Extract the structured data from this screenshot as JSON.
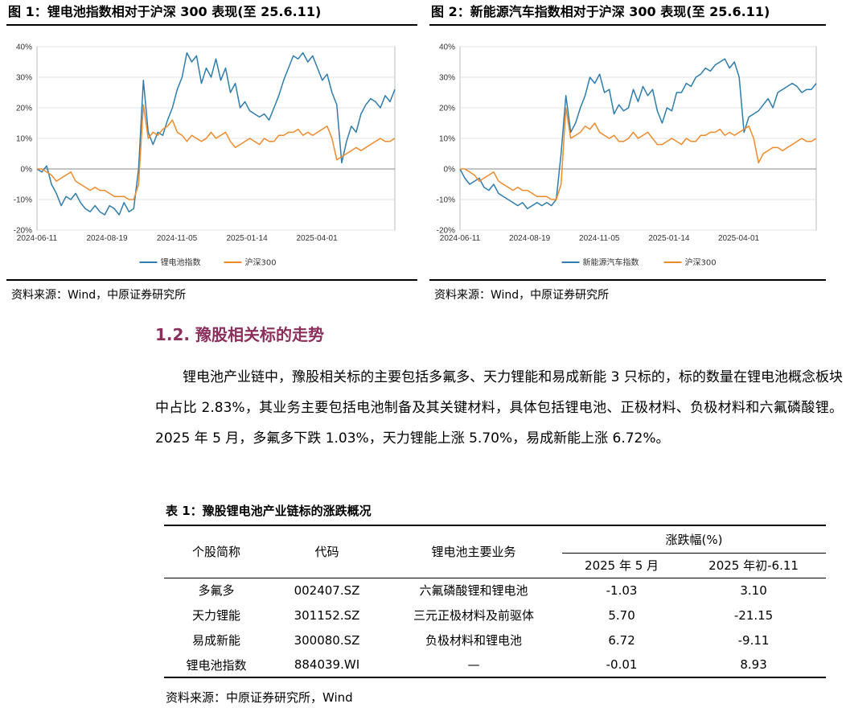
{
  "figure1": {
    "title": "图 1：锂电池指数相对于沪深 300 表现(至 25.6.11)",
    "source": "资料来源：Wind，中原证券研究所",
    "chart_data": {
      "type": "line",
      "x_ticks": [
        "2024-06-11",
        "2024-08-19",
        "2024-11-05",
        "2025-01-14",
        "2025-04-01"
      ],
      "y_ticks": [
        "40%",
        "30%",
        "20%",
        "10%",
        "0%",
        "-10%",
        "-20%"
      ],
      "ylim": [
        -20,
        40
      ],
      "grid": "horizontal",
      "legend_position": "bottom",
      "colors": {
        "primary": "#2e7dac",
        "secondary": "#ef8a2b"
      },
      "series": [
        {
          "name": "锂电池指数",
          "values": [
            0,
            -1,
            1,
            -5,
            -8,
            -12,
            -9,
            -10,
            -8,
            -11,
            -13,
            -14,
            -12,
            -14,
            -15,
            -12,
            -13,
            -15,
            -11,
            -14,
            -13,
            0,
            29,
            12,
            8,
            12,
            11,
            16,
            20,
            26,
            30,
            38,
            35,
            37,
            28,
            33,
            30,
            36,
            29,
            33,
            25,
            28,
            20,
            22,
            19,
            18,
            17,
            18,
            16,
            20,
            24,
            29,
            33,
            37,
            36,
            38,
            35,
            37,
            33,
            29,
            31,
            25,
            21,
            2,
            9,
            14,
            12,
            18,
            21,
            23,
            22,
            20,
            24,
            22,
            26
          ]
        },
        {
          "name": "沪深300",
          "values": [
            0,
            0,
            -1,
            -2,
            -4,
            -3,
            -2,
            -1,
            -4,
            -5,
            -6,
            -7,
            -6,
            -7,
            -7,
            -8,
            -9,
            -9,
            -9,
            -10,
            -10,
            -5,
            21,
            10,
            12,
            11,
            13,
            14,
            16,
            12,
            11,
            9,
            11,
            10,
            9,
            10,
            12,
            10,
            11,
            12,
            9,
            7,
            8,
            9,
            10,
            9,
            8,
            10,
            9,
            9,
            11,
            11,
            12,
            12,
            13,
            11,
            12,
            11,
            12,
            13,
            14,
            10,
            3,
            4,
            5,
            6,
            7,
            6,
            7,
            8,
            9,
            10,
            9,
            9,
            10
          ]
        }
      ]
    }
  },
  "figure2": {
    "title": "图 2：新能源汽车指数相对于沪深 300 表现(至 25.6.11)",
    "source": "资料来源：Wind，中原证券研究所",
    "chart_data": {
      "type": "line",
      "x_ticks": [
        "2024-06-11",
        "2024-08-19",
        "2024-11-05",
        "2025-01-14",
        "2025-04-01"
      ],
      "y_ticks": [
        "40%",
        "30%",
        "20%",
        "10%",
        "0%",
        "-10%",
        "-20%"
      ],
      "ylim": [
        -20,
        40
      ],
      "grid": "horizontal",
      "legend_position": "bottom",
      "colors": {
        "primary": "#2e7dac",
        "secondary": "#ef8a2b"
      },
      "series": [
        {
          "name": "新能源汽车指数",
          "values": [
            0,
            -3,
            -5,
            -4,
            -3,
            -6,
            -7,
            -5,
            -8,
            -9,
            -10,
            -11,
            -12,
            -11,
            -13,
            -12,
            -11,
            -12,
            -11,
            -12,
            -10,
            5,
            24,
            12,
            15,
            20,
            24,
            30,
            28,
            31,
            25,
            26,
            18,
            21,
            19,
            20,
            26,
            22,
            27,
            24,
            26,
            19,
            15,
            20,
            19,
            25,
            25,
            28,
            27,
            30,
            31,
            33,
            32,
            34,
            35,
            36,
            33,
            35,
            30,
            12,
            17,
            18,
            19,
            21,
            23,
            20,
            25,
            26,
            27,
            28,
            27,
            25,
            26,
            26,
            28
          ]
        },
        {
          "name": "沪深300",
          "values": [
            0,
            0,
            -1,
            -2,
            -4,
            -3,
            -2,
            -1,
            -4,
            -5,
            -6,
            -7,
            -6,
            -7,
            -7,
            -8,
            -9,
            -9,
            -9,
            -10,
            -10,
            -5,
            20,
            10,
            11,
            12,
            14,
            13,
            15,
            12,
            11,
            10,
            11,
            9,
            9,
            10,
            12,
            10,
            11,
            12,
            10,
            8,
            8,
            9,
            10,
            9,
            8,
            10,
            9,
            9,
            11,
            11,
            12,
            12,
            13,
            11,
            12,
            11,
            12,
            13,
            14,
            10,
            2,
            5,
            6,
            7,
            7,
            6,
            7,
            8,
            9,
            10,
            9,
            9,
            10
          ]
        }
      ]
    }
  },
  "section": {
    "heading": "1.2. 豫股相关标的走势",
    "paragraph": "锂电池产业链中，豫股相关标的主要包括多氟多、天力锂能和易成新能 3 只标的，标的数量在锂电池概念板块中占比 2.83%，其业务主要包括电池制备及其关键材料，具体包括锂电池、正极材料、负极材料和六氟磷酸锂。2025 年 5 月，多氟多下跌 1.03%，天力锂能上涨 5.70%，易成新能上涨 6.72%。"
  },
  "table": {
    "title": "表 1：豫股锂电池产业链标的涨跌概况",
    "headers": {
      "name": "个股简称",
      "code": "代码",
      "business": "锂电池主要业务",
      "change_group": "涨跌幅(%)",
      "may": "2025 年 5 月",
      "ytd": "2025 年初-6.11"
    },
    "rows": [
      {
        "name": "多氟多",
        "code": "002407.SZ",
        "business": "六氟磷酸锂和锂电池",
        "may": "-1.03",
        "ytd": "3.10"
      },
      {
        "name": "天力锂能",
        "code": "301152.SZ",
        "business": "三元正极材料及前驱体",
        "may": "5.70",
        "ytd": "-21.15"
      },
      {
        "name": "易成新能",
        "code": "300080.SZ",
        "business": "负极材料和锂电池",
        "may": "6.72",
        "ytd": "-9.11"
      },
      {
        "name": "锂电池指数",
        "code": "884039.WI",
        "business": "—",
        "may": "-0.01",
        "ytd": "8.93"
      }
    ],
    "source": "资料来源：中原证券研究所，Wind"
  }
}
